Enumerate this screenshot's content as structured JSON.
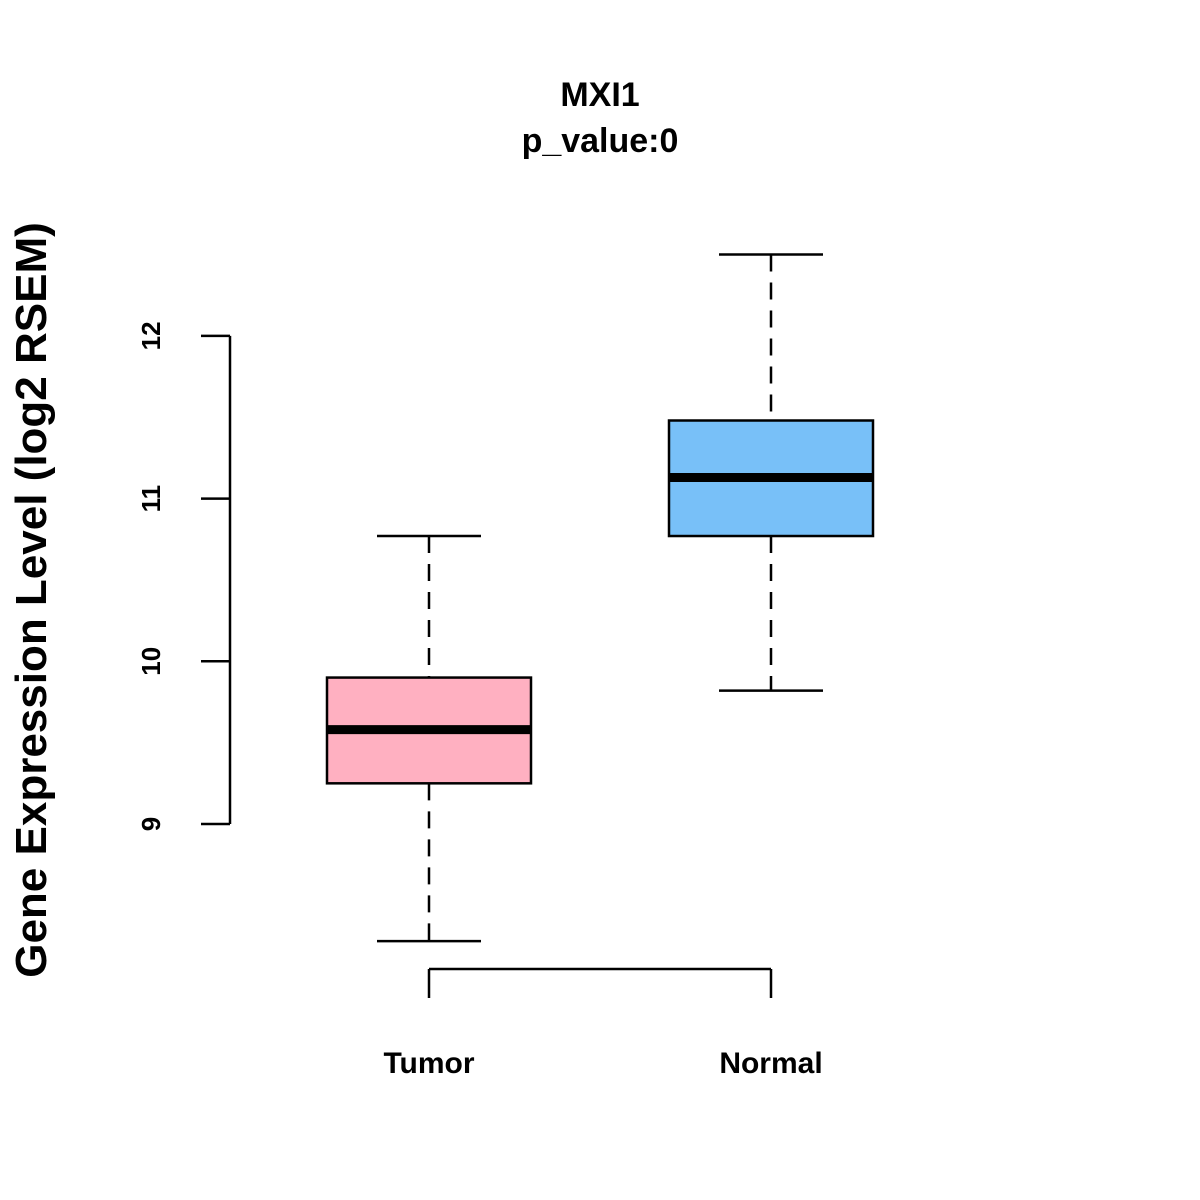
{
  "chart_data": {
    "type": "box",
    "title": "MXI1",
    "subtitle": "p_value:0",
    "xlabel": "",
    "ylabel": "Gene Expression Level (log2 RSEM)",
    "categories": [
      "Tumor",
      "Normal"
    ],
    "boxes": [
      {
        "name": "Tumor",
        "whisker_low": 8.28,
        "q1": 9.25,
        "median": 9.58,
        "q3": 9.9,
        "whisker_high": 10.77,
        "color": "#FFB0C1"
      },
      {
        "name": "Normal",
        "whisker_low": 9.82,
        "q1": 10.77,
        "median": 11.13,
        "q3": 11.48,
        "whisker_high": 12.5,
        "color": "#78C0F8"
      }
    ],
    "yticks": [
      9,
      10,
      11,
      12
    ],
    "ytick_labels": [
      "9",
      "10",
      "11",
      "12"
    ],
    "ylim": [
      8.0,
      12.9
    ],
    "grid": false,
    "legend": "none"
  }
}
